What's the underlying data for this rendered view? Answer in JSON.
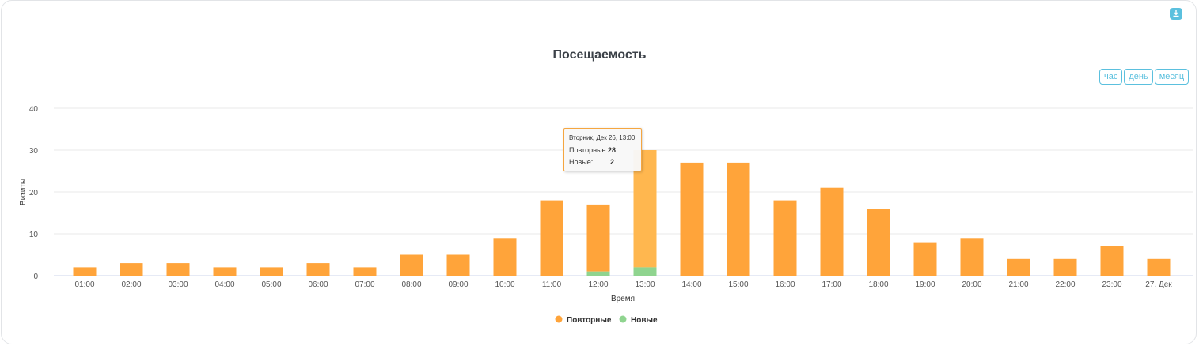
{
  "title": "Посещаемость",
  "range_buttons": [
    {
      "label": "час",
      "active": true
    },
    {
      "label": "день",
      "active": false
    },
    {
      "label": "месяц",
      "active": false
    }
  ],
  "tooltip": {
    "header": "Вторник, Дек 26, 13:00",
    "rows": [
      {
        "label": "Повторные:",
        "value": "28"
      },
      {
        "label": "Новые:",
        "value": "2"
      }
    ]
  },
  "colors": {
    "returning": "#ffa43a",
    "returning_hover": "#ffb74f",
    "new": "#8fd48f",
    "accent": "#5bc0de"
  },
  "chart_data": {
    "type": "bar",
    "stacked": true,
    "title": "Посещаемость",
    "xlabel": "Время",
    "ylabel": "Визиты",
    "ylim": [
      0,
      40
    ],
    "yticks": [
      0,
      10,
      20,
      30,
      40
    ],
    "grid": true,
    "legend_position": "bottom",
    "categories": [
      "01:00",
      "02:00",
      "03:00",
      "04:00",
      "05:00",
      "06:00",
      "07:00",
      "08:00",
      "09:00",
      "10:00",
      "11:00",
      "12:00",
      "13:00",
      "14:00",
      "15:00",
      "16:00",
      "17:00",
      "18:00",
      "19:00",
      "20:00",
      "21:00",
      "22:00",
      "23:00",
      "27. Дек"
    ],
    "series": [
      {
        "name": "Повторные",
        "values": [
          2,
          3,
          3,
          2,
          2,
          3,
          2,
          5,
          5,
          9,
          18,
          16,
          28,
          27,
          27,
          18,
          21,
          16,
          8,
          9,
          4,
          4,
          7,
          4
        ]
      },
      {
        "name": "Новые",
        "values": [
          0,
          0,
          0,
          0,
          0,
          0,
          0,
          0,
          0,
          0,
          0,
          1,
          2,
          0,
          0,
          0,
          0,
          0,
          0,
          0,
          0,
          0,
          0,
          0
        ]
      }
    ],
    "highlighted_category": "13:00"
  }
}
